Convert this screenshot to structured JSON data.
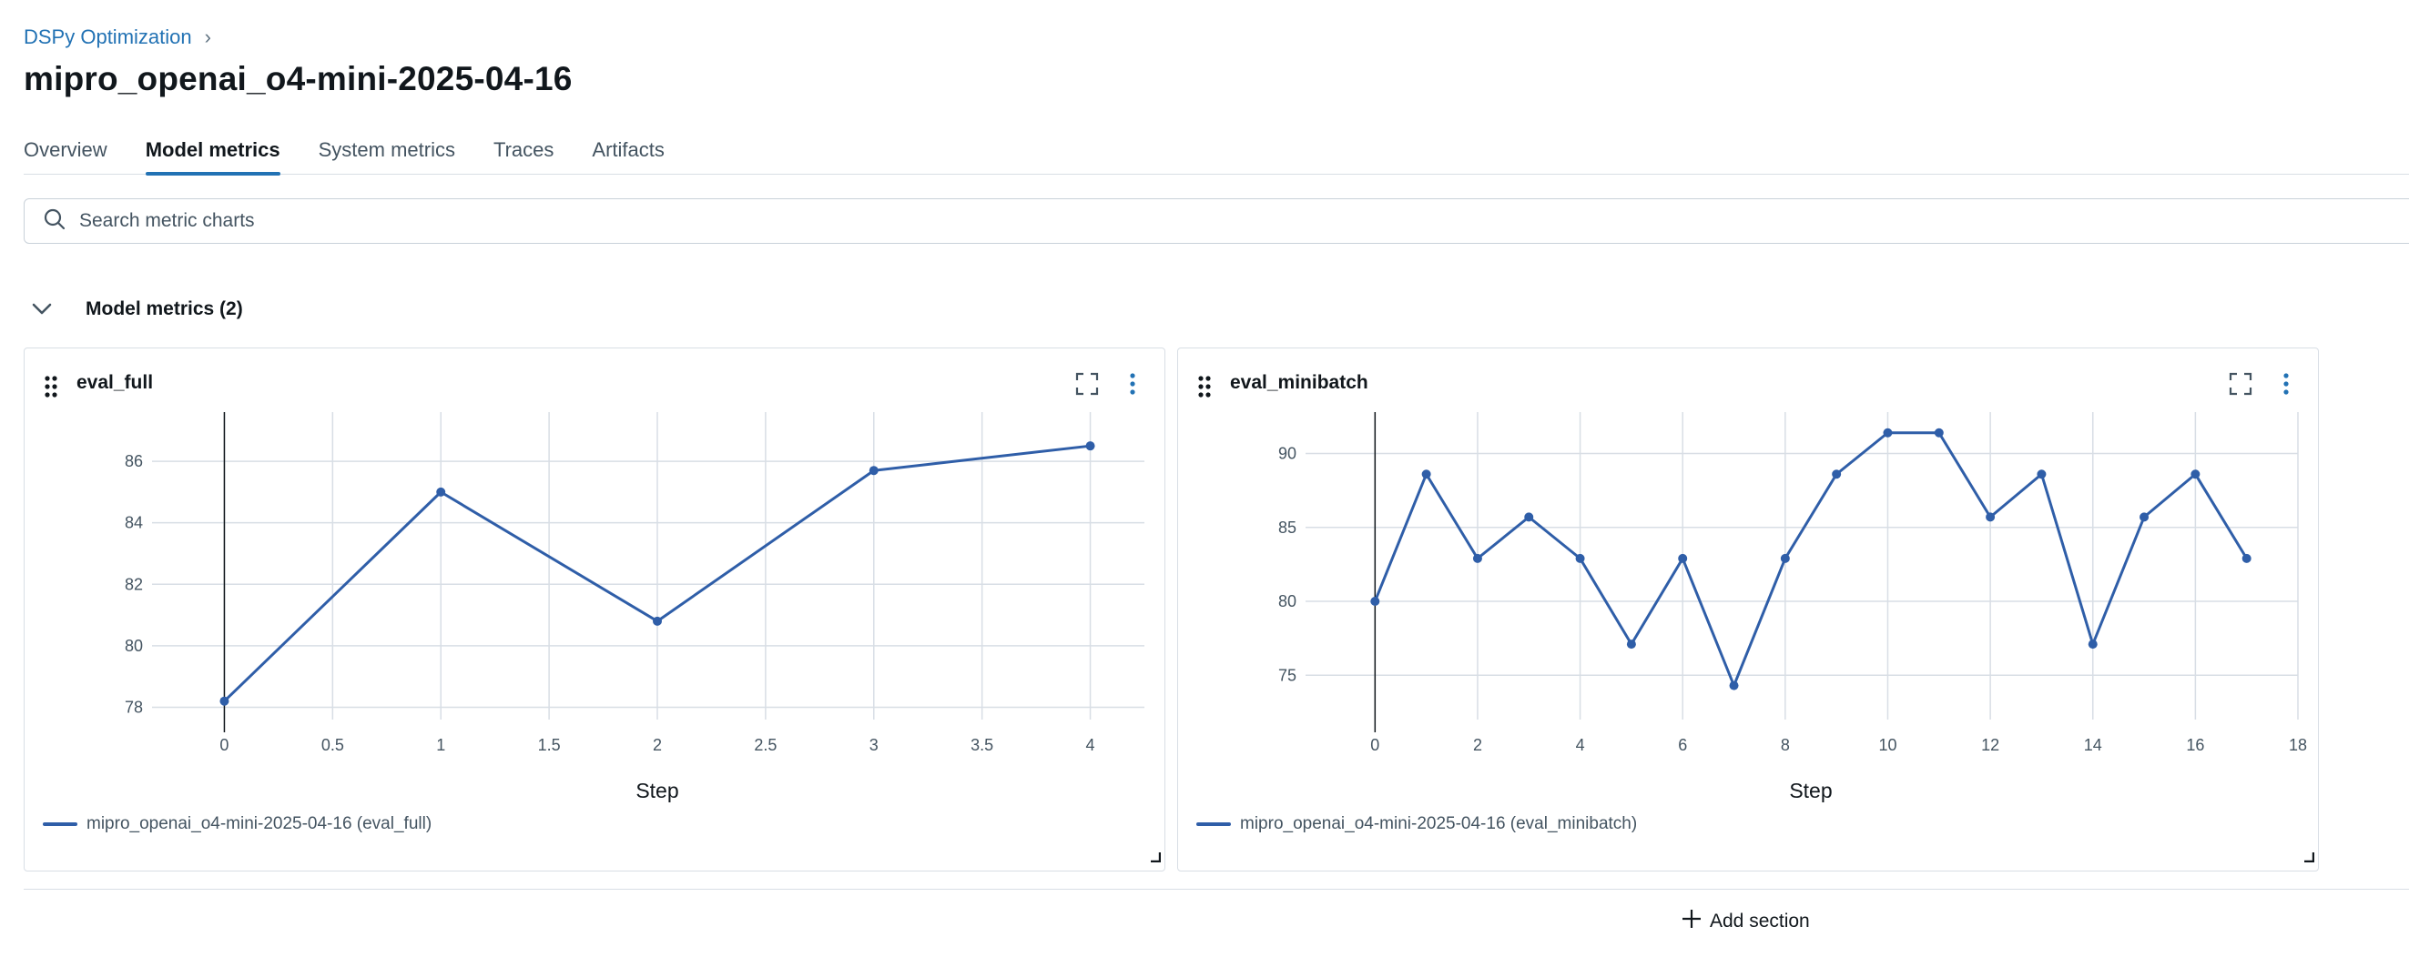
{
  "breadcrumb": {
    "parent": "DSPy Optimization",
    "separator": "›"
  },
  "run_title": "mipro_openai_o4-mini-2025-04-16",
  "tabs": [
    {
      "label": "Overview",
      "active": false
    },
    {
      "label": "Model metrics",
      "active": true
    },
    {
      "label": "System metrics",
      "active": false
    },
    {
      "label": "Traces",
      "active": false
    },
    {
      "label": "Artifacts",
      "active": false
    }
  ],
  "search": {
    "placeholder": "Search metric charts",
    "value": ""
  },
  "section": {
    "label": "Model metrics (2)",
    "expanded": true
  },
  "add_section_label": "Add section",
  "icons": {
    "search": "search-icon",
    "collapse": "chevron-down-icon",
    "drag": "drag-handle-icon",
    "expand": "fullscreen-icon",
    "more": "kebab-menu-icon",
    "add": "plus-icon",
    "resize": "resize-handle-icon"
  },
  "colors": {
    "accent": "#2272b4",
    "series": "#2f5ea8"
  },
  "chart_data": [
    {
      "type": "line",
      "title": "eval_full",
      "xlabel": "Step",
      "ylabel": "",
      "x": [
        0,
        1,
        2,
        3,
        4
      ],
      "series": [
        {
          "name": "mipro_openai_o4-mini-2025-04-16 (eval_full)",
          "values": [
            78.2,
            85.0,
            80.8,
            85.7,
            86.5
          ]
        }
      ],
      "xlim": [
        -0.25,
        4.25
      ],
      "ylim": [
        77.6,
        87.6
      ],
      "xticks": [
        0,
        0.5,
        1,
        1.5,
        2,
        2.5,
        3,
        3.5,
        4
      ],
      "xtick_labels": [
        "0",
        "0.5",
        "1",
        "1.5",
        "2",
        "2.5",
        "3",
        "3.5",
        "4"
      ],
      "yticks": [
        78,
        80,
        82,
        84,
        86
      ],
      "ytick_labels": [
        "78",
        "80",
        "82",
        "84",
        "86"
      ],
      "grid": true,
      "legend_position": "bottom-left"
    },
    {
      "type": "line",
      "title": "eval_minibatch",
      "xlabel": "Step",
      "ylabel": "",
      "x": [
        0,
        1,
        2,
        3,
        4,
        5,
        6,
        7,
        8,
        9,
        10,
        11,
        12,
        13,
        14,
        15,
        16,
        17
      ],
      "series": [
        {
          "name": "mipro_openai_o4-mini-2025-04-16 (eval_minibatch)",
          "values": [
            80.0,
            88.6,
            82.9,
            85.7,
            82.9,
            77.1,
            82.9,
            74.3,
            82.9,
            88.6,
            91.4,
            91.4,
            85.7,
            88.6,
            77.1,
            85.7,
            88.6,
            82.9
          ]
        }
      ],
      "xlim": [
        -1,
        18
      ],
      "ylim": [
        72.0,
        92.8
      ],
      "xticks": [
        0,
        2,
        4,
        6,
        8,
        10,
        12,
        14,
        16,
        18
      ],
      "xtick_labels": [
        "0",
        "2",
        "4",
        "6",
        "8",
        "10",
        "12",
        "14",
        "16",
        "18"
      ],
      "yticks": [
        75,
        80,
        85,
        90
      ],
      "ytick_labels": [
        "75",
        "80",
        "85",
        "90"
      ],
      "grid": true,
      "legend_position": "bottom-left"
    }
  ]
}
